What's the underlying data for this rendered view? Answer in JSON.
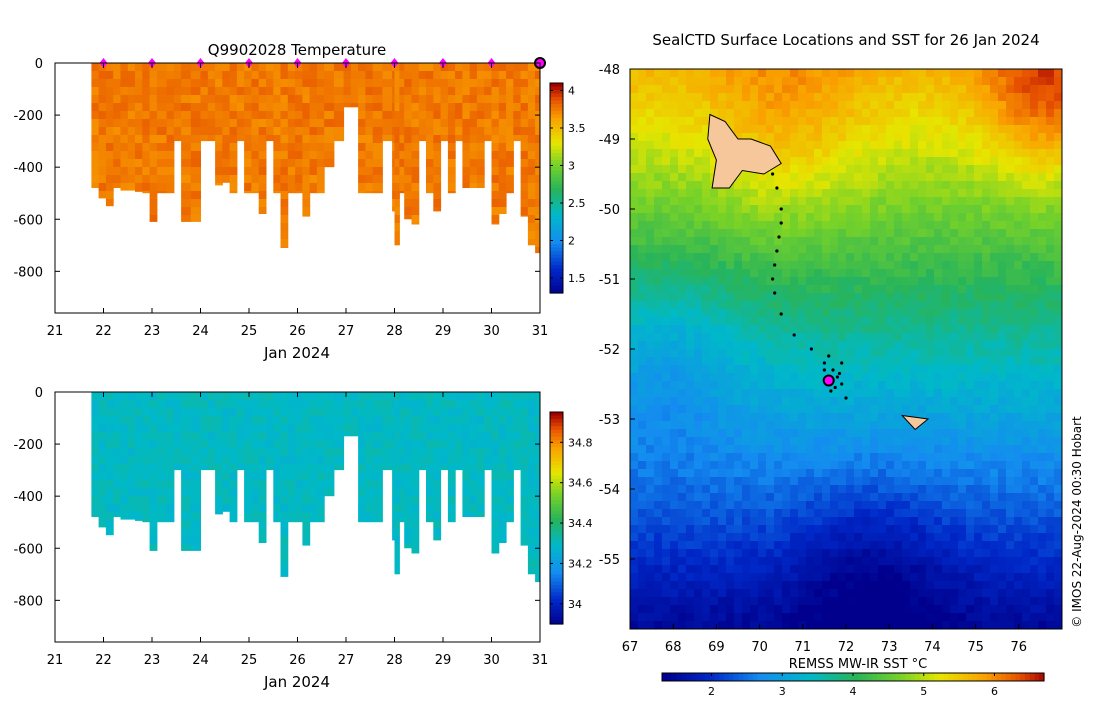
{
  "chart_data": [
    {
      "type": "heatmap",
      "title": "Q9902028  Temperature",
      "xlabel": "Jan 2024",
      "ylabel": "",
      "xlim": [
        21,
        31
      ],
      "ylim": [
        -960,
        0
      ],
      "xticks": [
        "21",
        "22",
        "23",
        "24",
        "25",
        "26",
        "27",
        "28",
        "29",
        "30",
        "31"
      ],
      "yticks": [
        0,
        -200,
        -400,
        -600,
        -800
      ],
      "colorbar": {
        "min": 1.3,
        "max": 4.1,
        "ticks": [
          1.5,
          2,
          2.5,
          3,
          3.5,
          4
        ]
      },
      "profile_markers_days": [
        22,
        23,
        24,
        25,
        26,
        27,
        28,
        29,
        30
      ],
      "current_profile_day": 31,
      "marker_color": "#ff00ff",
      "profile_max_depths": [
        [
          21.75,
          -480
        ],
        [
          21.9,
          -520
        ],
        [
          22.05,
          -550
        ],
        [
          22.2,
          -480
        ],
        [
          22.35,
          -490
        ],
        [
          22.5,
          -490
        ],
        [
          22.65,
          -495
        ],
        [
          22.8,
          -500
        ],
        [
          22.95,
          -610
        ],
        [
          23.1,
          -500
        ],
        [
          23.3,
          -500
        ],
        [
          23.45,
          -300
        ],
        [
          23.6,
          -610
        ],
        [
          23.8,
          -610
        ],
        [
          24.0,
          -300
        ],
        [
          24.15,
          -300
        ],
        [
          24.3,
          -470
        ],
        [
          24.45,
          -460
        ],
        [
          24.6,
          -500
        ],
        [
          24.75,
          -300
        ],
        [
          24.9,
          -500
        ],
        [
          25.05,
          -500
        ],
        [
          25.2,
          -580
        ],
        [
          25.35,
          -300
        ],
        [
          25.5,
          -500
        ],
        [
          25.65,
          -710
        ],
        [
          25.8,
          -500
        ],
        [
          25.95,
          -500
        ],
        [
          26.1,
          -590
        ],
        [
          26.25,
          -500
        ],
        [
          26.4,
          -500
        ],
        [
          26.55,
          -400
        ],
        [
          26.75,
          -300
        ],
        [
          26.95,
          -170
        ],
        [
          27.1,
          -170
        ],
        [
          27.25,
          -500
        ],
        [
          27.4,
          -500
        ],
        [
          27.55,
          -500
        ],
        [
          27.75,
          -300
        ],
        [
          27.95,
          -570
        ],
        [
          28.0,
          -700
        ],
        [
          28.1,
          -500
        ],
        [
          28.2,
          -600
        ],
        [
          28.35,
          -620
        ],
        [
          28.5,
          -300
        ],
        [
          28.65,
          -500
        ],
        [
          28.8,
          -570
        ],
        [
          28.95,
          -300
        ],
        [
          29.1,
          -500
        ],
        [
          29.25,
          -300
        ],
        [
          29.4,
          -480
        ],
        [
          29.55,
          -480
        ],
        [
          29.7,
          -480
        ],
        [
          29.85,
          -300
        ],
        [
          30.0,
          -620
        ],
        [
          30.15,
          -580
        ],
        [
          30.3,
          -500
        ],
        [
          30.45,
          -300
        ],
        [
          30.6,
          -590
        ],
        [
          30.75,
          -700
        ],
        [
          30.9,
          -730
        ]
      ]
    },
    {
      "type": "heatmap",
      "title": "",
      "xlabel": "Jan 2024",
      "ylabel": "",
      "xlim": [
        21,
        31
      ],
      "ylim": [
        -960,
        0
      ],
      "xticks": [
        "21",
        "22",
        "23",
        "24",
        "25",
        "26",
        "27",
        "28",
        "29",
        "30",
        "31"
      ],
      "yticks": [
        0,
        -200,
        -400,
        -600,
        -800
      ],
      "colorbar": {
        "min": 33.9,
        "max": 34.95,
        "ticks": [
          34,
          34.2,
          34.4,
          34.6,
          34.8
        ]
      }
    },
    {
      "type": "heatmap",
      "title": "SealCTD Surface Locations and SST for 26 Jan 2024",
      "xlabel": "",
      "ylabel": "",
      "xlim": [
        67,
        77
      ],
      "ylim": [
        -56,
        -48
      ],
      "xticks": [
        "67",
        "68",
        "69",
        "70",
        "71",
        "72",
        "73",
        "74",
        "75",
        "76"
      ],
      "yticks": [
        "-48",
        "-49",
        "-50",
        "-51",
        "-52",
        "-53",
        "-54",
        "-55"
      ],
      "colorbar": {
        "label": "REMSS MW-IR SST °C",
        "min": 1.3,
        "max": 6.7,
        "ticks": [
          2,
          3,
          4,
          5,
          6
        ]
      },
      "track_points": [
        [
          70.3,
          -49.5
        ],
        [
          70.4,
          -49.7
        ],
        [
          70.5,
          -50.0
        ],
        [
          70.5,
          -50.2
        ],
        [
          70.45,
          -50.4
        ],
        [
          70.4,
          -50.6
        ],
        [
          70.35,
          -50.8
        ],
        [
          70.3,
          -51.0
        ],
        [
          70.35,
          -51.2
        ],
        [
          70.5,
          -51.5
        ],
        [
          70.8,
          -51.8
        ],
        [
          71.2,
          -52.0
        ],
        [
          71.5,
          -52.2
        ],
        [
          71.6,
          -52.1
        ],
        [
          71.7,
          -52.3
        ],
        [
          71.8,
          -52.4
        ],
        [
          71.9,
          -52.5
        ],
        [
          71.65,
          -52.6
        ],
        [
          71.5,
          -52.3
        ],
        [
          71.9,
          -52.2
        ],
        [
          72.0,
          -52.7
        ],
        [
          71.75,
          -52.55
        ],
        [
          71.85,
          -52.35
        ],
        [
          71.55,
          -52.45
        ]
      ],
      "current_location": [
        71.6,
        -52.45
      ],
      "islands": [
        "Kerguelen",
        "Heard Island"
      ],
      "island_color": "#f7c79c"
    }
  ],
  "credit": "© IMOS 22-Aug-2024 00:30 Hobart",
  "colors": {
    "deep_blue": "#1a3fbf",
    "sky_blue": "#1eb0ef",
    "mid_green": "#22b24c",
    "dark_red": "#a00000",
    "missing": "#ffffff"
  }
}
